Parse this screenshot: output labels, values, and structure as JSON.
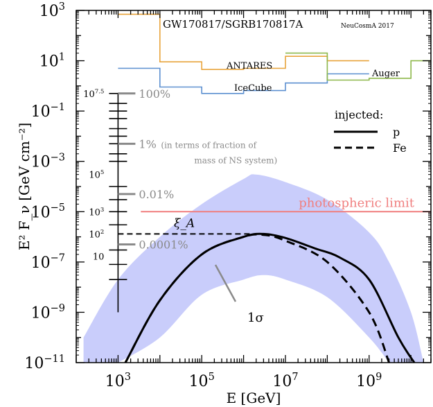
{
  "chart_data": {
    "type": "line",
    "title": "GW170817/SGRB170817A",
    "credit": "NeuCosmA 2017",
    "xlabel": "E [GeV]",
    "ylabel": "E² F_ν [GeV cm⁻²]",
    "x_scale": "log",
    "y_scale": "log",
    "xlim": [
      100,
      30000000000
    ],
    "ylim": [
      1e-11,
      1000
    ],
    "x_ticks": [
      {
        "value": 1000,
        "base": "10",
        "exp": "3"
      },
      {
        "value": 100000,
        "base": "10",
        "exp": "5"
      },
      {
        "value": 10000000,
        "base": "10",
        "exp": "7"
      },
      {
        "value": 1000000000,
        "base": "10",
        "exp": "9"
      }
    ],
    "y_ticks": [
      {
        "value": 1000,
        "base": "10",
        "exp": "3"
      },
      {
        "value": 10,
        "base": "10",
        "exp": "1"
      },
      {
        "value": 0.1,
        "base": "10",
        "exp": "−1"
      },
      {
        "value": 0.001,
        "base": "10",
        "exp": "−3"
      },
      {
        "value": 1e-05,
        "base": "10",
        "exp": "−5"
      },
      {
        "value": 1e-07,
        "base": "10",
        "exp": "−7"
      },
      {
        "value": 1e-09,
        "base": "10",
        "exp": "−9"
      },
      {
        "value": 1e-11,
        "base": "10",
        "exp": "−11"
      }
    ],
    "limits": [
      {
        "name": "ANTARES",
        "color": "#e8a33a",
        "steps": [
          [
            1000,
            700
          ],
          [
            10000,
            9
          ],
          [
            100000,
            4.5
          ],
          [
            1000000,
            5
          ],
          [
            10000000,
            15
          ],
          [
            100000000,
            10
          ],
          [
            1000000000,
            10
          ]
        ]
      },
      {
        "name": "IceCube",
        "color": "#5b8fd0",
        "steps": [
          [
            1000,
            5
          ],
          [
            10000,
            0.9
          ],
          [
            100000,
            0.5
          ],
          [
            1000000,
            0.65
          ],
          [
            10000000,
            1.3
          ],
          [
            100000000,
            3
          ],
          [
            1000000000,
            3
          ]
        ]
      },
      {
        "name": "Auger",
        "color": "#8db74a",
        "steps": [
          [
            10000000,
            20
          ],
          [
            100000000,
            1.7
          ],
          [
            1000000000,
            2
          ],
          [
            10000000000,
            10
          ],
          [
            30000000000,
            10
          ]
        ]
      }
    ],
    "band": {
      "label": "1σ",
      "color": "#c9cdfb",
      "upper": [
        [
          150,
          1e-10
        ],
        [
          1000,
          2e-08
        ],
        [
          10000,
          1e-06
        ],
        [
          100000,
          2e-05
        ],
        [
          1000000,
          0.0002
        ],
        [
          2000000,
          0.0003
        ],
        [
          10000000,
          0.00015
        ],
        [
          100000000,
          3e-05
        ],
        [
          1000000000,
          1.5e-06
        ],
        [
          3000000000,
          1e-07
        ],
        [
          10000000000,
          1e-09
        ],
        [
          20000000000,
          1e-11
        ]
      ],
      "lower": [
        [
          1000,
          1e-11
        ],
        [
          10000,
          1e-10
        ],
        [
          100000,
          5e-09
        ],
        [
          1000000,
          2e-08
        ],
        [
          3000000,
          3e-08
        ],
        [
          10000000,
          2e-08
        ],
        [
          100000000,
          4e-09
        ],
        [
          1000000000,
          1e-10
        ],
        [
          3000000000,
          1e-11
        ]
      ]
    },
    "series": [
      {
        "name": "p",
        "style": "solid",
        "points": [
          [
            1500,
            1e-11
          ],
          [
            10000,
            3e-09
          ],
          [
            100000,
            2e-07
          ],
          [
            1000000,
            1e-06
          ],
          [
            3000000,
            1.3e-06
          ],
          [
            10000000,
            9e-07
          ],
          [
            50000000,
            3.5e-07
          ],
          [
            200000000,
            1.5e-07
          ],
          [
            1000000000,
            2e-08
          ],
          [
            5000000000,
            1e-10
          ],
          [
            12000000000,
            1e-11
          ]
        ]
      },
      {
        "name": "Fe",
        "style": "dashed",
        "points": [
          [
            1500,
            1e-11
          ],
          [
            10000,
            3e-09
          ],
          [
            100000,
            2e-07
          ],
          [
            1000000,
            1e-06
          ],
          [
            3000000,
            1.2e-06
          ],
          [
            10000000,
            7e-07
          ],
          [
            100000000,
            1e-07
          ],
          [
            1000000000,
            1e-09
          ],
          [
            3000000000,
            1e-11
          ]
        ]
      }
    ],
    "xi_line": {
      "label": "ξ_A",
      "y": 1.3e-06,
      "x_start": 1000,
      "x_end": 3000000
    },
    "photospheric_limit": {
      "label": "photospheric limit",
      "y": 1e-05,
      "x_start": 3500,
      "color": "#f07f7f"
    },
    "legend": {
      "title": "injected:",
      "position": "top-right",
      "entries": [
        {
          "label": "p",
          "style": "solid"
        },
        {
          "label": "Fe",
          "style": "dashed"
        }
      ]
    },
    "inset_scale": {
      "x": 1000,
      "top": 0.5,
      "bottom": 1e-09,
      "black_ticks": [
        0.5,
        0.2,
        0.1,
        0.05,
        0.02,
        0.01,
        0.005,
        0.002,
        0.001,
        0.0001,
        3e-05,
        1e-05,
        3e-06,
        3e-07,
        8e-08,
        2e-08
      ],
      "black_labels": [
        {
          "y": 0.5,
          "base": "10",
          "exp": "7.5"
        },
        {
          "y": 0.0003,
          "base": "10",
          "exp": "5"
        },
        {
          "y": 1e-05,
          "base": "10",
          "exp": "3"
        },
        {
          "y": 1.3e-06,
          "base": "10",
          "exp": "2"
        },
        {
          "y": 1.7e-07,
          "base": "10",
          "exp": ""
        }
      ],
      "gray_ticks": [
        {
          "y": 0.5,
          "label": "100%"
        },
        {
          "y": 0.005,
          "label": "1%"
        },
        {
          "y": 5e-05,
          "label": "0.01%"
        },
        {
          "y": 5e-07,
          "label": "0.0001%"
        }
      ],
      "note_line1": "(in terms of fraction of",
      "note_line2": "mass of NS system)"
    }
  }
}
